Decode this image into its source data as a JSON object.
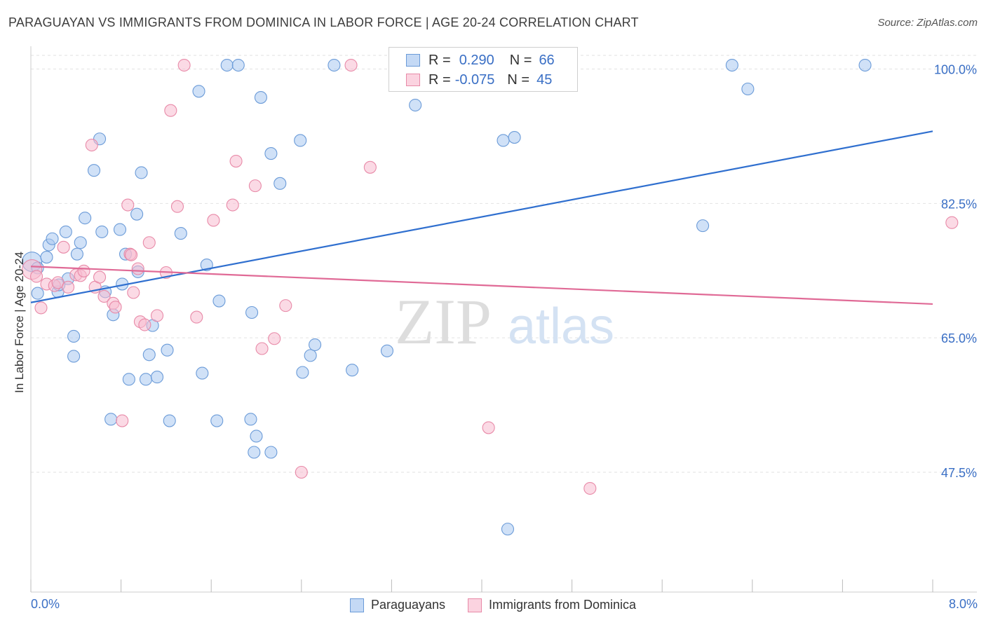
{
  "title": "PARAGUAYAN VS IMMIGRANTS FROM DOMINICA IN LABOR FORCE | AGE 20-24 CORRELATION CHART",
  "source": "Source: ZipAtlas.com",
  "watermark": {
    "zip": "ZIP",
    "atlas": "atlas"
  },
  "colors": {
    "blue_fill": "#aac8f0",
    "blue_stroke": "#6b9bd8",
    "blue_line": "#2f6fcf",
    "pink_fill": "#f7bcd0",
    "pink_stroke": "#e88aa8",
    "pink_line": "#e06a96",
    "tick_text": "#3a6fc5",
    "grid": "#e2e2e2"
  },
  "legend": {
    "rows": [
      {
        "r_label": "R =",
        "r_value": "0.290",
        "n_label": "N =",
        "n_value": "66"
      },
      {
        "r_label": "R =",
        "r_value": "-0.075",
        "n_label": "N =",
        "n_value": "45"
      }
    ]
  },
  "bottom_legend": {
    "series1": "Paraguayans",
    "series2": "Immigrants from Dominica"
  },
  "chart_data": {
    "type": "scatter",
    "title": "PARAGUAYAN VS IMMIGRANTS FROM DOMINICA IN LABOR FORCE | AGE 20-24 CORRELATION CHART",
    "xlabel": "",
    "ylabel": "In Labor Force | Age 20-24",
    "x_tick_labels": [
      "0.0%",
      "8.0%"
    ],
    "y_tick_labels": [
      "100.0%",
      "82.5%",
      "65.0%",
      "47.5%"
    ],
    "xlim": [
      0,
      8
    ],
    "ylim": [
      31.9,
      102.6
    ],
    "y_ticks": [
      100.0,
      82.5,
      65.0,
      47.5
    ],
    "grid": true,
    "legend_position": "top-center",
    "series": [
      {
        "name": "Paraguayans",
        "color": "#aac8f0",
        "trend": {
          "x": [
            0.0,
            8.0
          ],
          "y": [
            69.6,
            91.9
          ]
        },
        "points": [
          [
            0.01,
            74.9
          ],
          [
            0.06,
            74.1
          ],
          [
            0.06,
            70.8
          ],
          [
            0.14,
            75.5
          ],
          [
            0.16,
            77.1
          ],
          [
            0.19,
            77.9
          ],
          [
            0.24,
            71.0
          ],
          [
            0.25,
            71.9
          ],
          [
            0.31,
            78.8
          ],
          [
            0.33,
            72.7
          ],
          [
            0.38,
            65.2
          ],
          [
            0.41,
            75.9
          ],
          [
            0.44,
            77.4
          ],
          [
            0.48,
            80.6
          ],
          [
            0.56,
            86.8
          ],
          [
            0.61,
            90.9
          ],
          [
            0.63,
            78.8
          ],
          [
            0.66,
            71.0
          ],
          [
            0.73,
            68.0
          ],
          [
            0.79,
            79.1
          ],
          [
            0.81,
            72.0
          ],
          [
            0.84,
            75.9
          ],
          [
            0.87,
            59.6
          ],
          [
            0.94,
            81.1
          ],
          [
            0.95,
            73.6
          ],
          [
            0.98,
            86.5
          ],
          [
            1.02,
            59.6
          ],
          [
            1.05,
            62.8
          ],
          [
            1.08,
            66.6
          ],
          [
            1.12,
            59.9
          ],
          [
            1.21,
            63.4
          ],
          [
            1.33,
            78.6
          ],
          [
            1.49,
            97.1
          ],
          [
            1.52,
            60.4
          ],
          [
            1.56,
            74.5
          ],
          [
            1.67,
            69.8
          ],
          [
            1.74,
            100.5
          ],
          [
            1.84,
            100.5
          ],
          [
            1.96,
            68.3
          ],
          [
            2.04,
            96.3
          ],
          [
            2.13,
            89.0
          ],
          [
            2.21,
            85.1
          ],
          [
            2.39,
            90.7
          ],
          [
            2.41,
            60.5
          ],
          [
            2.48,
            62.7
          ],
          [
            2.52,
            64.1
          ],
          [
            2.69,
            100.5
          ],
          [
            2.85,
            60.8
          ],
          [
            3.16,
            63.3
          ],
          [
            3.42,
            100.5
          ],
          [
            3.41,
            95.3
          ],
          [
            4.19,
            90.7
          ],
          [
            4.29,
            91.1
          ],
          [
            5.96,
            79.6
          ],
          [
            6.22,
            100.5
          ],
          [
            6.36,
            97.4
          ],
          [
            7.4,
            100.5
          ],
          [
            0.71,
            54.4
          ],
          [
            1.23,
            54.2
          ],
          [
            1.65,
            54.2
          ],
          [
            1.95,
            54.4
          ],
          [
            2.0,
            52.2
          ],
          [
            1.98,
            50.1
          ],
          [
            2.13,
            50.1
          ],
          [
            0.38,
            62.6
          ],
          [
            4.23,
            40.1
          ]
        ]
      },
      {
        "name": "Immigrants from Dominica",
        "color": "#f7bcd0",
        "trend": {
          "x": [
            0.0,
            8.0
          ],
          "y": [
            74.3,
            69.4
          ]
        },
        "points": [
          [
            0.01,
            73.9
          ],
          [
            0.05,
            73.0
          ],
          [
            0.09,
            68.9
          ],
          [
            0.14,
            72.0
          ],
          [
            0.21,
            71.8
          ],
          [
            0.24,
            72.2
          ],
          [
            0.29,
            76.8
          ],
          [
            0.33,
            71.6
          ],
          [
            0.4,
            73.2
          ],
          [
            0.44,
            73.1
          ],
          [
            0.47,
            73.7
          ],
          [
            0.54,
            90.1
          ],
          [
            0.57,
            71.6
          ],
          [
            0.61,
            72.9
          ],
          [
            0.65,
            70.4
          ],
          [
            0.73,
            69.5
          ],
          [
            0.75,
            69.0
          ],
          [
            0.81,
            54.2
          ],
          [
            0.86,
            82.3
          ],
          [
            0.88,
            75.9
          ],
          [
            0.91,
            70.9
          ],
          [
            0.95,
            74.0
          ],
          [
            0.97,
            67.1
          ],
          [
            1.01,
            66.7
          ],
          [
            1.05,
            77.4
          ],
          [
            1.24,
            94.6
          ],
          [
            1.3,
            82.1
          ],
          [
            1.36,
            100.5
          ],
          [
            1.47,
            67.7
          ],
          [
            1.62,
            80.3
          ],
          [
            1.79,
            82.3
          ],
          [
            1.82,
            88.0
          ],
          [
            1.99,
            84.8
          ],
          [
            2.05,
            63.6
          ],
          [
            2.16,
            64.9
          ],
          [
            2.26,
            69.2
          ],
          [
            2.4,
            47.5
          ],
          [
            2.84,
            100.5
          ],
          [
            3.01,
            87.2
          ],
          [
            4.06,
            53.3
          ],
          [
            4.96,
            45.4
          ],
          [
            8.17,
            80.0
          ],
          [
            0.89,
            75.8
          ],
          [
            1.12,
            67.9
          ],
          [
            1.2,
            73.5
          ]
        ]
      }
    ]
  }
}
